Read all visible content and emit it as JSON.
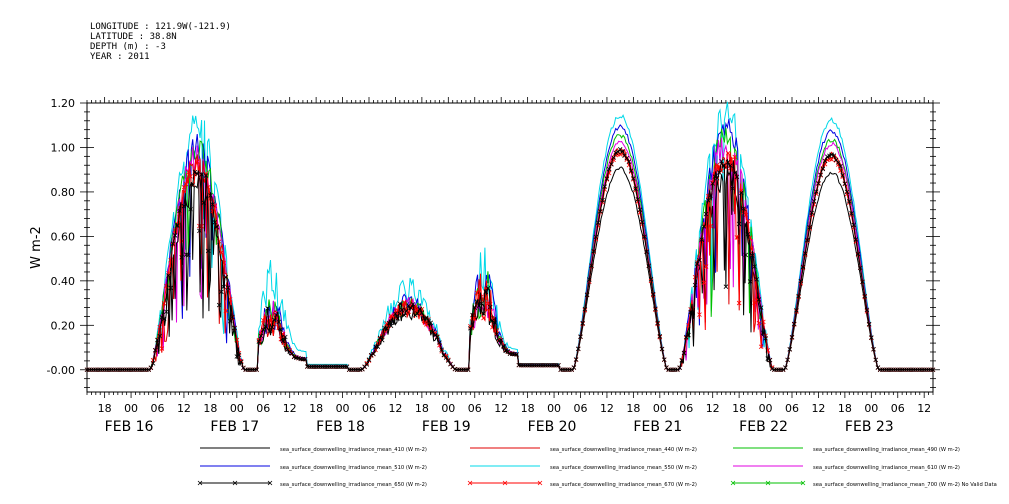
{
  "header": {
    "longitude": "LONGITUDE : 121.9W(-121.9)",
    "latitude": "LATITUDE : 38.8N",
    "depth": "DEPTH (m) : -3",
    "year": "YEAR : 2011"
  },
  "chart_data": {
    "type": "line",
    "ylabel": "W m-2",
    "ylim": [
      -0.1,
      1.2
    ],
    "y_ticks": [
      "-0.00",
      "0.20",
      "0.40",
      "0.60",
      "0.80",
      "1.00",
      "1.20"
    ],
    "y_tick_values": [
      0.0,
      0.2,
      0.4,
      0.6,
      0.8,
      1.0,
      1.2
    ],
    "x_start": "2011-02-15T14:00",
    "x_end": "2011-02-23T14:00",
    "x_hour_ticks": [
      "18",
      "00",
      "06",
      "12",
      "18",
      "00",
      "06",
      "12",
      "18",
      "00",
      "06",
      "12",
      "18",
      "00",
      "06",
      "12",
      "18",
      "00",
      "06",
      "12",
      "18",
      "00",
      "06",
      "12",
      "18",
      "00",
      "06",
      "12",
      "18",
      "00",
      "06",
      "12"
    ],
    "x_day_labels": [
      "FEB 16",
      "FEB 17",
      "FEB 18",
      "FEB 19",
      "FEB 20",
      "FEB 21",
      "FEB 22",
      "FEB 23"
    ],
    "days": [
      {
        "date": "2011-02-16",
        "peak_410": 0.86,
        "peak_440": 0.95,
        "peak_490": 1.02,
        "peak_510": 1.05,
        "peak_550": 1.15,
        "peak_610": 1.0,
        "peak_650": 0.93,
        "peak_670": 0.93,
        "condition": "noisy"
      },
      {
        "date": "2011-02-17",
        "peak_410": 0.28,
        "peak_440": 0.31,
        "peak_490": 0.33,
        "peak_510": 0.35,
        "peak_550": 0.54,
        "peak_610": 0.33,
        "peak_650": 0.31,
        "peak_670": 0.31,
        "condition": "cloudy"
      },
      {
        "date": "2011-02-18",
        "peak_410": 0.26,
        "peak_440": 0.28,
        "peak_490": 0.29,
        "peak_510": 0.3,
        "peak_550": 0.36,
        "peak_610": 0.29,
        "peak_650": 0.28,
        "peak_670": 0.28,
        "condition": "overcast"
      },
      {
        "date": "2011-02-19",
        "peak_410": 0.41,
        "peak_440": 0.45,
        "peak_490": 0.48,
        "peak_510": 0.5,
        "peak_550": 0.6,
        "peak_610": 0.47,
        "peak_650": 0.45,
        "peak_670": 0.45,
        "condition": "cloudy"
      },
      {
        "date": "2011-02-20",
        "peak_410": 0.91,
        "peak_440": 1.0,
        "peak_490": 1.06,
        "peak_510": 1.1,
        "peak_550": 1.15,
        "peak_610": 1.03,
        "peak_650": 0.99,
        "peak_670": 0.98,
        "condition": "clear"
      },
      {
        "date": "2011-02-21",
        "peak_410": 0.9,
        "peak_440": 1.0,
        "peak_490": 1.08,
        "peak_510": 1.12,
        "peak_550": 1.2,
        "peak_610": 1.06,
        "peak_650": 1.0,
        "peak_670": 1.0,
        "condition": "noisy"
      },
      {
        "date": "2011-02-22",
        "peak_410": 0.89,
        "peak_440": 0.98,
        "peak_490": 1.04,
        "peak_510": 1.08,
        "peak_550": 1.13,
        "peak_610": 1.02,
        "peak_650": 0.97,
        "peak_670": 0.96,
        "condition": "clear"
      }
    ],
    "series": [
      {
        "name": "sea_surface_downwelling_irradiance_mean_410 (W m-2)",
        "key": "peak_410",
        "color": "#000000",
        "marker": "none"
      },
      {
        "name": "sea_surface_downwelling_irradiance_mean_440 (W m-2)",
        "key": "peak_440",
        "color": "#e00000",
        "marker": "none"
      },
      {
        "name": "sea_surface_downwelling_irradiance_mean_490 (W m-2)",
        "key": "peak_490",
        "color": "#00c000",
        "marker": "none"
      },
      {
        "name": "sea_surface_downwelling_irradiance_mean_510 (W m-2)",
        "key": "peak_510",
        "color": "#0000e0",
        "marker": "none"
      },
      {
        "name": "sea_surface_downwelling_irradiance_mean_550 (W m-2)",
        "key": "peak_550",
        "color": "#00d8e8",
        "marker": "none"
      },
      {
        "name": "sea_surface_downwelling_irradiance_mean_610 (W m-2)",
        "key": "peak_610",
        "color": "#e000e0",
        "marker": "none"
      },
      {
        "name": "sea_surface_downwelling_irradiance_mean_650 (W m-2)",
        "key": "peak_650",
        "color": "#000000",
        "marker": "x"
      },
      {
        "name": "sea_surface_downwelling_irradiance_mean_670 (W m-2)",
        "key": "peak_670",
        "color": "#ff0000",
        "marker": "x"
      },
      {
        "name": "sea_surface_downwelling_irradiance_mean_700 (W m-2) No Valid Data",
        "key": null,
        "color": "#00c000",
        "marker": "x"
      }
    ],
    "grid": false,
    "legend_placement": "bottom"
  }
}
